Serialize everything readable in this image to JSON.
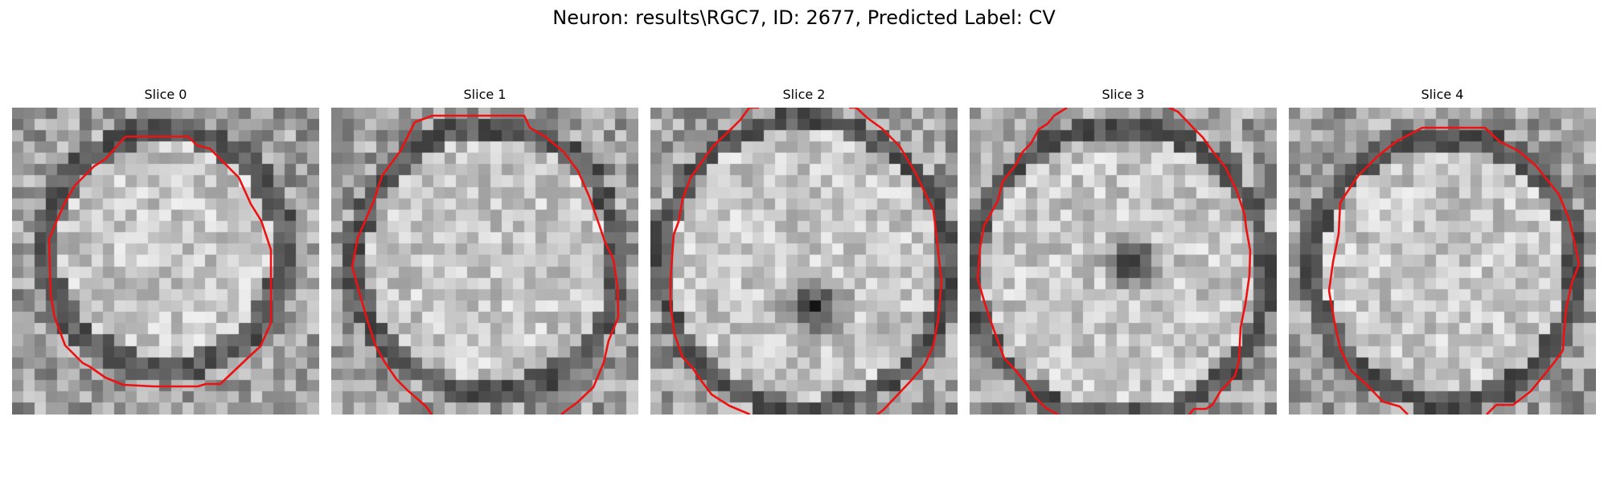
{
  "figure": {
    "title": "Neuron: results\\RGC7, ID: 2677, Predicted Label: CV"
  },
  "slices": [
    {
      "title": "Slice 0"
    },
    {
      "title": "Slice 1"
    },
    {
      "title": "Slice 2"
    },
    {
      "title": "Slice 3"
    },
    {
      "title": "Slice 4"
    }
  ],
  "style": {
    "contour_color": "#ee1111",
    "colormap": "grayscale"
  }
}
